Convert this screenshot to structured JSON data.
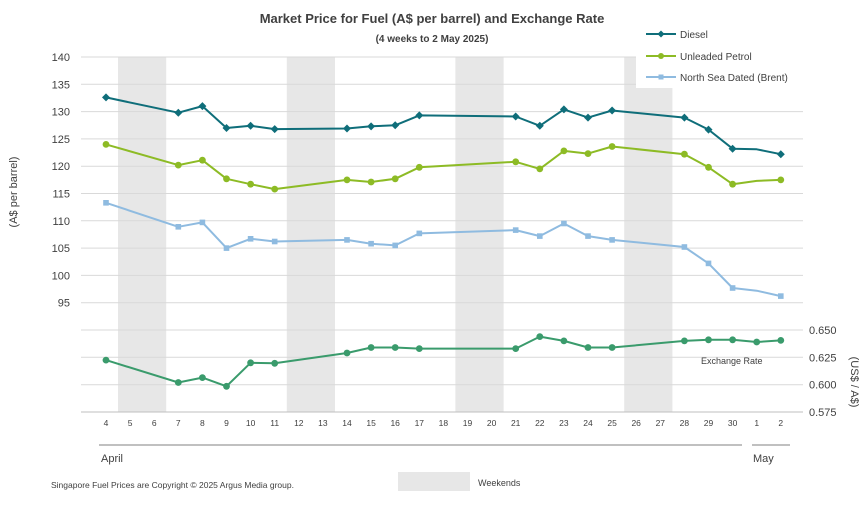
{
  "chart_data": {
    "type": "line",
    "title": "Market Price for Fuel (A$ per barrel) and Exchange Rate",
    "subtitle": "(4 weeks to 2 May 2025)",
    "ylabel_left": "(A$ per barrel)",
    "ylabel_right": "(US$ / A$)",
    "categories": [
      "4",
      "5",
      "6",
      "7",
      "8",
      "9",
      "10",
      "11",
      "12",
      "13",
      "14",
      "15",
      "16",
      "17",
      "18",
      "19",
      "20",
      "21",
      "22",
      "23",
      "24",
      "25",
      "26",
      "27",
      "28",
      "29",
      "30",
      "1",
      "2"
    ],
    "months": [
      "April",
      "May"
    ],
    "weekend_ranges": [
      [
        "5",
        "6"
      ],
      [
        "12",
        "13"
      ],
      [
        "19",
        "20"
      ],
      [
        "26",
        "27"
      ]
    ],
    "weekend_label": "Weekends",
    "ylim_left": [
      90,
      140
    ],
    "yticks_left": [
      95,
      100,
      105,
      110,
      115,
      120,
      125,
      130,
      135,
      140
    ],
    "ylim_right": [
      0.575,
      0.65
    ],
    "yticks_right": [
      "0.575",
      "0.600",
      "0.625",
      "0.650"
    ],
    "series": [
      {
        "name": "Diesel",
        "axis": "left",
        "color": "#0f6e7a",
        "marker": "diamond",
        "values": [
          132.6,
          null,
          null,
          129.8,
          131.0,
          127.0,
          127.4,
          126.8,
          null,
          null,
          126.9,
          127.3,
          127.5,
          129.3,
          null,
          null,
          null,
          129.1,
          127.4,
          130.4,
          128.9,
          130.2,
          null,
          null,
          128.9,
          126.7,
          123.2,
          123.1,
          122.2
        ],
        "markers_at": [
          "4",
          "7",
          "8",
          "9",
          "10",
          "11",
          "14",
          "15",
          "16",
          "17",
          "21",
          "22",
          "23",
          "24",
          "25",
          "28",
          "29",
          "30",
          "2"
        ]
      },
      {
        "name": "Unleaded Petrol",
        "axis": "left",
        "color": "#8dbb25",
        "marker": "circle",
        "values": [
          124.0,
          null,
          null,
          120.2,
          121.1,
          117.7,
          116.7,
          115.8,
          null,
          null,
          117.5,
          117.1,
          117.7,
          119.8,
          null,
          null,
          null,
          120.8,
          119.5,
          122.8,
          122.3,
          123.6,
          null,
          null,
          122.2,
          119.8,
          116.7,
          117.3,
          117.5
        ],
        "markers_at": [
          "4",
          "7",
          "8",
          "9",
          "10",
          "11",
          "14",
          "15",
          "16",
          "17",
          "21",
          "22",
          "23",
          "24",
          "25",
          "28",
          "29",
          "30",
          "2"
        ]
      },
      {
        "name": "North Sea Dated (Brent)",
        "axis": "left",
        "color": "#8fbbe0",
        "marker": "square",
        "values": [
          113.3,
          null,
          null,
          108.9,
          109.7,
          105.0,
          106.7,
          106.2,
          null,
          null,
          106.5,
          105.8,
          105.5,
          107.7,
          null,
          null,
          null,
          108.3,
          107.2,
          109.5,
          107.2,
          106.5,
          null,
          null,
          105.2,
          102.2,
          97.7,
          97.2,
          96.2
        ],
        "markers_at": [
          "4",
          "7",
          "8",
          "9",
          "10",
          "11",
          "14",
          "15",
          "16",
          "17",
          "21",
          "22",
          "23",
          "24",
          "25",
          "28",
          "29",
          "30",
          "2"
        ]
      },
      {
        "name": "Exchange Rate",
        "axis": "right",
        "color": "#3a9b6c",
        "marker": "circle",
        "values": [
          0.6225,
          null,
          null,
          0.602,
          0.6065,
          0.5985,
          0.62,
          0.6195,
          null,
          null,
          0.629,
          0.634,
          0.634,
          0.633,
          null,
          null,
          null,
          0.633,
          0.644,
          0.64,
          0.634,
          0.634,
          null,
          null,
          0.64,
          0.641,
          0.641,
          0.639,
          0.6405
        ],
        "markers_at": [
          "4",
          "7",
          "8",
          "9",
          "10",
          "11",
          "14",
          "15",
          "16",
          "17",
          "21",
          "22",
          "23",
          "24",
          "25",
          "28",
          "29",
          "30",
          "1",
          "2"
        ]
      }
    ],
    "annotations": [
      "Exchange Rate"
    ],
    "legend_position": "top-right",
    "footnote": "Singapore Fuel Prices are Copyright © 2025 Argus Media group."
  }
}
